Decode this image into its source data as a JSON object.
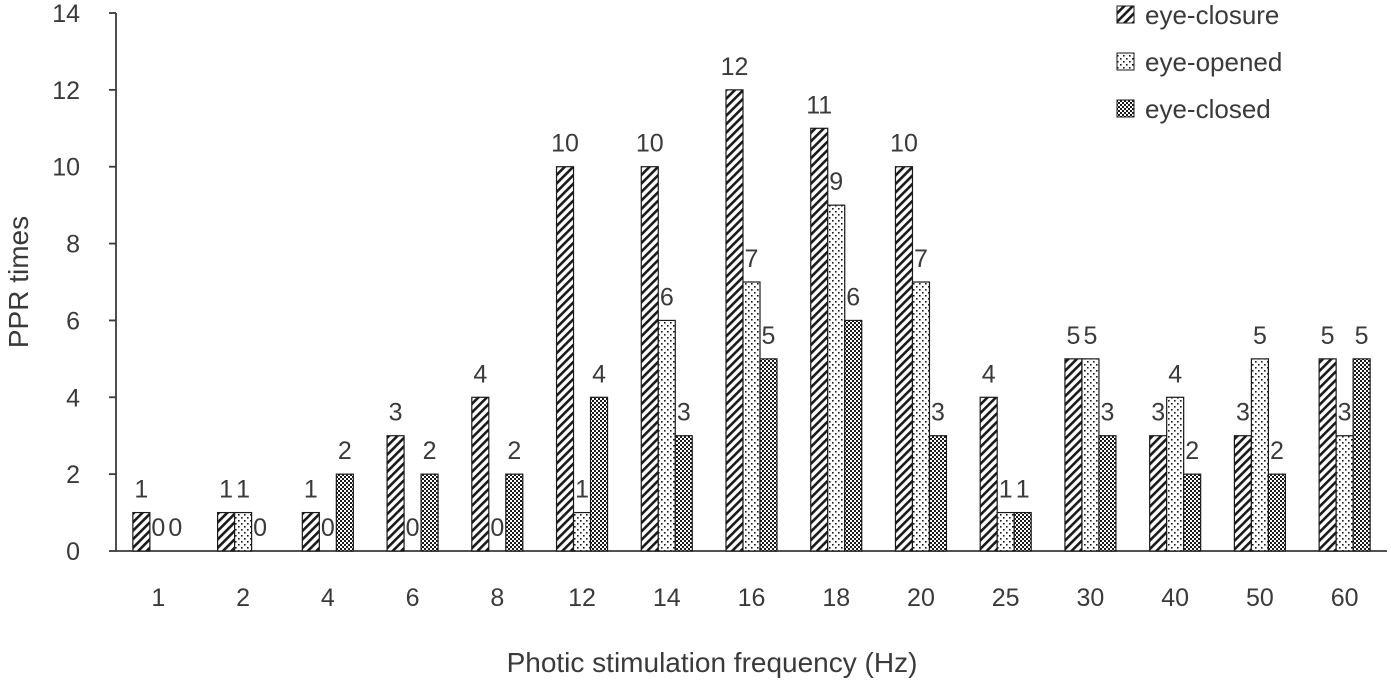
{
  "chart_data": {
    "type": "bar",
    "xlabel": "Photic stimulation frequency (Hz)",
    "ylabel": "PPR times",
    "ylim": [
      0,
      14
    ],
    "yticks": [
      "0",
      "2",
      "4",
      "6",
      "8",
      "10",
      "12",
      "14"
    ],
    "categories": [
      "1",
      "2",
      "4",
      "6",
      "8",
      "12",
      "14",
      "16",
      "18",
      "20",
      "25",
      "30",
      "40",
      "50",
      "60"
    ],
    "series": [
      {
        "name": "eye-closure",
        "pattern": "diagonal-hatch",
        "values": [
          1,
          1,
          1,
          3,
          4,
          10,
          10,
          12,
          11,
          10,
          4,
          5,
          3,
          3,
          5
        ],
        "labels": [
          "1",
          "1",
          "1",
          "3",
          "4",
          "10",
          "10",
          "12",
          "11",
          "10",
          "4",
          "5",
          "3",
          "3",
          "5"
        ]
      },
      {
        "name": "eye-opened",
        "pattern": "dots",
        "values": [
          0,
          1,
          0,
          0,
          0,
          1,
          6,
          7,
          9,
          7,
          1,
          5,
          4,
          5,
          3
        ],
        "labels": [
          "0",
          "1",
          "0",
          "0",
          "0",
          "1",
          "6",
          "7",
          "9",
          "7",
          "1",
          "5",
          "4",
          "5",
          "3"
        ]
      },
      {
        "name": "eye-closed",
        "pattern": "checker",
        "values": [
          0,
          0,
          2,
          2,
          2,
          4,
          3,
          5,
          6,
          3,
          1,
          3,
          2,
          2,
          5
        ],
        "labels": [
          "0",
          "0",
          "2",
          "2",
          "2",
          "4",
          "3",
          "5",
          "6",
          "3",
          "1",
          "3",
          "2",
          "2",
          "5"
        ]
      }
    ],
    "legend_position": "top-right",
    "grid": false
  }
}
